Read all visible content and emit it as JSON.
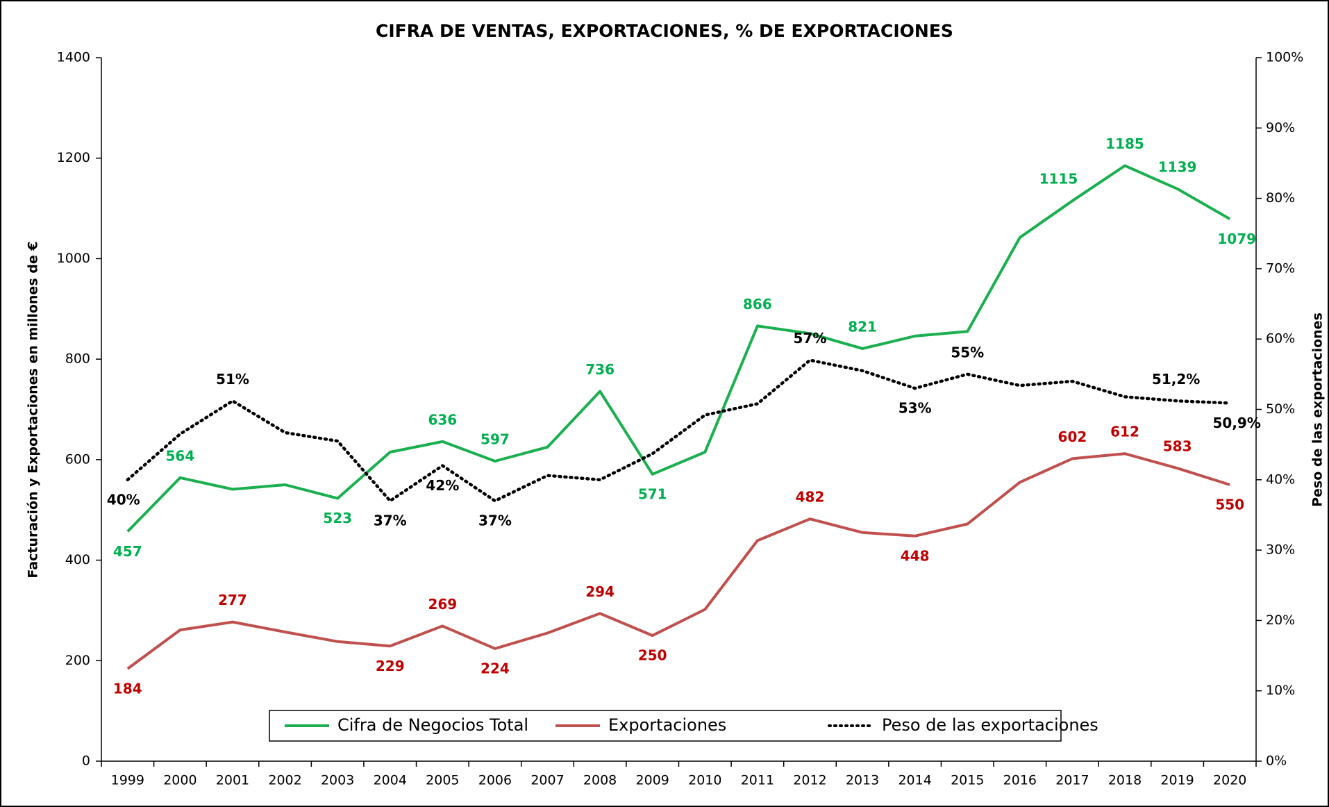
{
  "chart_data": {
    "type": "line",
    "title": "CIFRA DE VENTAS, EXPORTACIONES, % DE EXPORTACIONES",
    "ylabel": "Facturación y Exportaciones en millones de €",
    "y2label": "Peso de las exportaciones",
    "categories": [
      "1999",
      "2000",
      "2001",
      "2002",
      "2003",
      "2004",
      "2005",
      "2006",
      "2007",
      "2008",
      "2009",
      "2010",
      "2011",
      "2012",
      "2013",
      "2014",
      "2015",
      "2016",
      "2017",
      "2018",
      "2019",
      "2020"
    ],
    "ylim": [
      0,
      1400
    ],
    "yticks": [
      0,
      200,
      400,
      600,
      800,
      1000,
      1200,
      1400
    ],
    "y2lim": [
      0,
      100
    ],
    "y2ticks": [
      {
        "value": 0,
        "label": "0%"
      },
      {
        "value": 10,
        "label": "10%"
      },
      {
        "value": 20,
        "label": "20%"
      },
      {
        "value": 30,
        "label": "30%"
      },
      {
        "value": 40,
        "label": "40%"
      },
      {
        "value": 50,
        "label": "50%"
      },
      {
        "value": 60,
        "label": "60%"
      },
      {
        "value": 70,
        "label": "70%"
      },
      {
        "value": 80,
        "label": "80%"
      },
      {
        "value": 90,
        "label": "90%"
      },
      {
        "value": 100,
        "label": "100%"
      }
    ],
    "legend": "bottom",
    "series": [
      {
        "name": "Cifra de Negocios Total",
        "color": "#1aaf4f",
        "label_color": "#00b050",
        "values": [
          457,
          564,
          541,
          550,
          523,
          615,
          636,
          597,
          625,
          736,
          571,
          615,
          866,
          851,
          821,
          846,
          855,
          1042,
          1115,
          1185,
          1139,
          1079
        ],
        "value_labels": [
          "457",
          "564",
          null,
          null,
          "523",
          null,
          "636",
          "597",
          null,
          "736",
          "571",
          null,
          "866",
          null,
          "821",
          null,
          null,
          null,
          "1115",
          "1185",
          "1139",
          "1079"
        ]
      },
      {
        "name": "Exportaciones",
        "color": "#c0504d",
        "label_color": "#c00000",
        "values": [
          184,
          261,
          277,
          257,
          238,
          229,
          269,
          224,
          255,
          294,
          250,
          302,
          439,
          482,
          455,
          448,
          472,
          555,
          602,
          612,
          583,
          550
        ],
        "value_labels": [
          "184",
          null,
          "277",
          null,
          null,
          "229",
          "269",
          "224",
          null,
          "294",
          "250",
          null,
          null,
          "482",
          null,
          "448",
          null,
          null,
          "602",
          "612",
          "583",
          "550"
        ]
      },
      {
        "name": "Peso de las exportaciones",
        "color": "#000000",
        "label_color": "#000000",
        "axis": "y2",
        "dash": "dotted",
        "values": [
          40,
          46.5,
          51.2,
          46.7,
          45.5,
          37,
          42,
          37,
          40.6,
          40,
          43.7,
          49.2,
          50.8,
          57,
          55.5,
          53,
          55,
          53.4,
          54,
          51.8,
          51.2,
          50.9
        ],
        "value_labels": [
          "40%",
          null,
          "51%",
          null,
          null,
          "37%",
          "42%",
          "37%",
          null,
          null,
          null,
          null,
          null,
          "57%",
          null,
          "53%",
          "55%",
          null,
          null,
          null,
          "51,2%",
          "50,9%"
        ]
      }
    ]
  }
}
